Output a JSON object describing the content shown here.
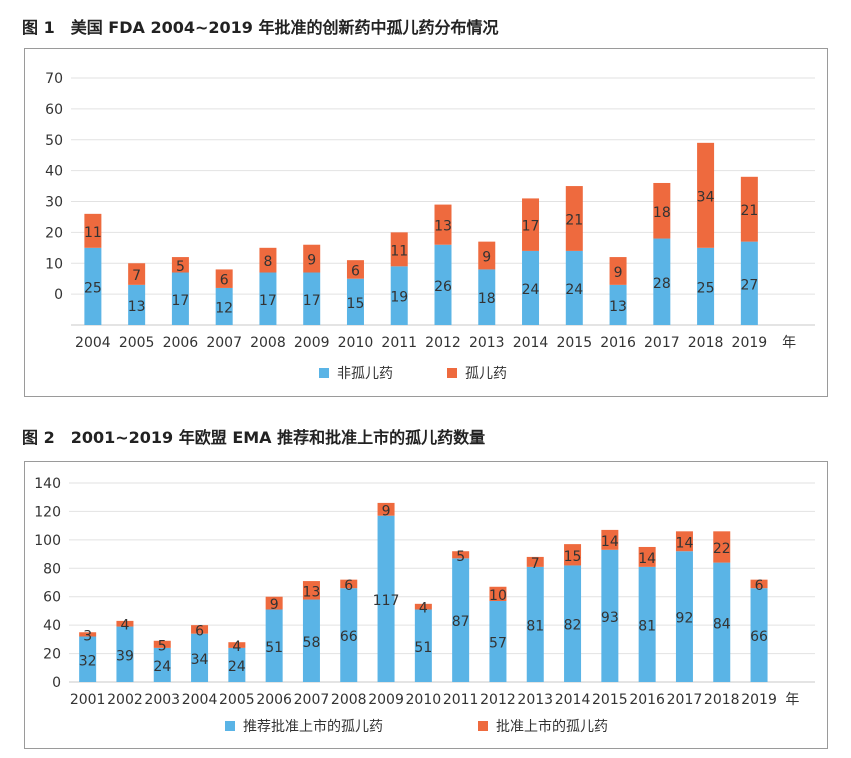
{
  "figures": [
    {
      "caption": "图 1　美国 FDA 2004~2019 年批准的创新药中孤儿药分布情况"
    },
    {
      "caption": "图 2　2001~2019 年欧盟 EMA 推荐和批准上市的孤儿药数量"
    }
  ],
  "colors": {
    "blue": "#5ab4e6",
    "orange": "#ee6a3e",
    "grid": "#e2e2e2",
    "axis": "#c8c8c8"
  },
  "chart_data": [
    {
      "type": "bar",
      "stacked": true,
      "title": "图 1　美国 FDA 2004~2019 年批准的创新药中孤儿药分布情况",
      "categories": [
        "2004",
        "2005",
        "2006",
        "2007",
        "2008",
        "2009",
        "2010",
        "2011",
        "2012",
        "2013",
        "2014",
        "2015",
        "2016",
        "2017",
        "2018",
        "2019"
      ],
      "x_unit": "年",
      "series": [
        {
          "name": "非孤儿药",
          "color": "#5ab4e6",
          "values": [
            25,
            13,
            17,
            12,
            17,
            17,
            15,
            19,
            26,
            18,
            24,
            24,
            13,
            28,
            25,
            27
          ]
        },
        {
          "name": "孤儿药",
          "color": "#ee6a3e",
          "values": [
            11,
            7,
            5,
            6,
            8,
            9,
            6,
            11,
            13,
            9,
            17,
            21,
            9,
            18,
            34,
            21
          ]
        }
      ],
      "yticks": [
        "70",
        "60",
        "50",
        "40",
        "30",
        "20",
        "10",
        "0"
      ],
      "ylim": [
        -10,
        70
      ],
      "grid": true,
      "legend": "bottom"
    },
    {
      "type": "bar",
      "stacked": true,
      "title": "图 2　2001~2019 年欧盟 EMA 推荐和批准上市的孤儿药数量",
      "categories": [
        "2001",
        "2002",
        "2003",
        "2004",
        "2005",
        "2006",
        "2007",
        "2008",
        "2009",
        "2010",
        "2011",
        "2012",
        "2013",
        "2014",
        "2015",
        "2016",
        "2017",
        "2018",
        "2019"
      ],
      "x_unit": "年",
      "series": [
        {
          "name": "推荐批准上市的孤儿药",
          "color": "#5ab4e6",
          "values": [
            32,
            39,
            24,
            34,
            24,
            51,
            58,
            66,
            117,
            51,
            87,
            57,
            81,
            82,
            93,
            81,
            92,
            84,
            66
          ]
        },
        {
          "name": "批准上市的孤儿药",
          "color": "#ee6a3e",
          "values": [
            3,
            4,
            5,
            6,
            4,
            9,
            13,
            6,
            9,
            4,
            5,
            10,
            7,
            15,
            14,
            14,
            14,
            22,
            6
          ]
        }
      ],
      "yticks": [
        "140",
        "120",
        "100",
        "80",
        "60",
        "40",
        "20",
        "0"
      ],
      "ylim": [
        0,
        140
      ],
      "grid": true,
      "legend": "bottom"
    }
  ]
}
